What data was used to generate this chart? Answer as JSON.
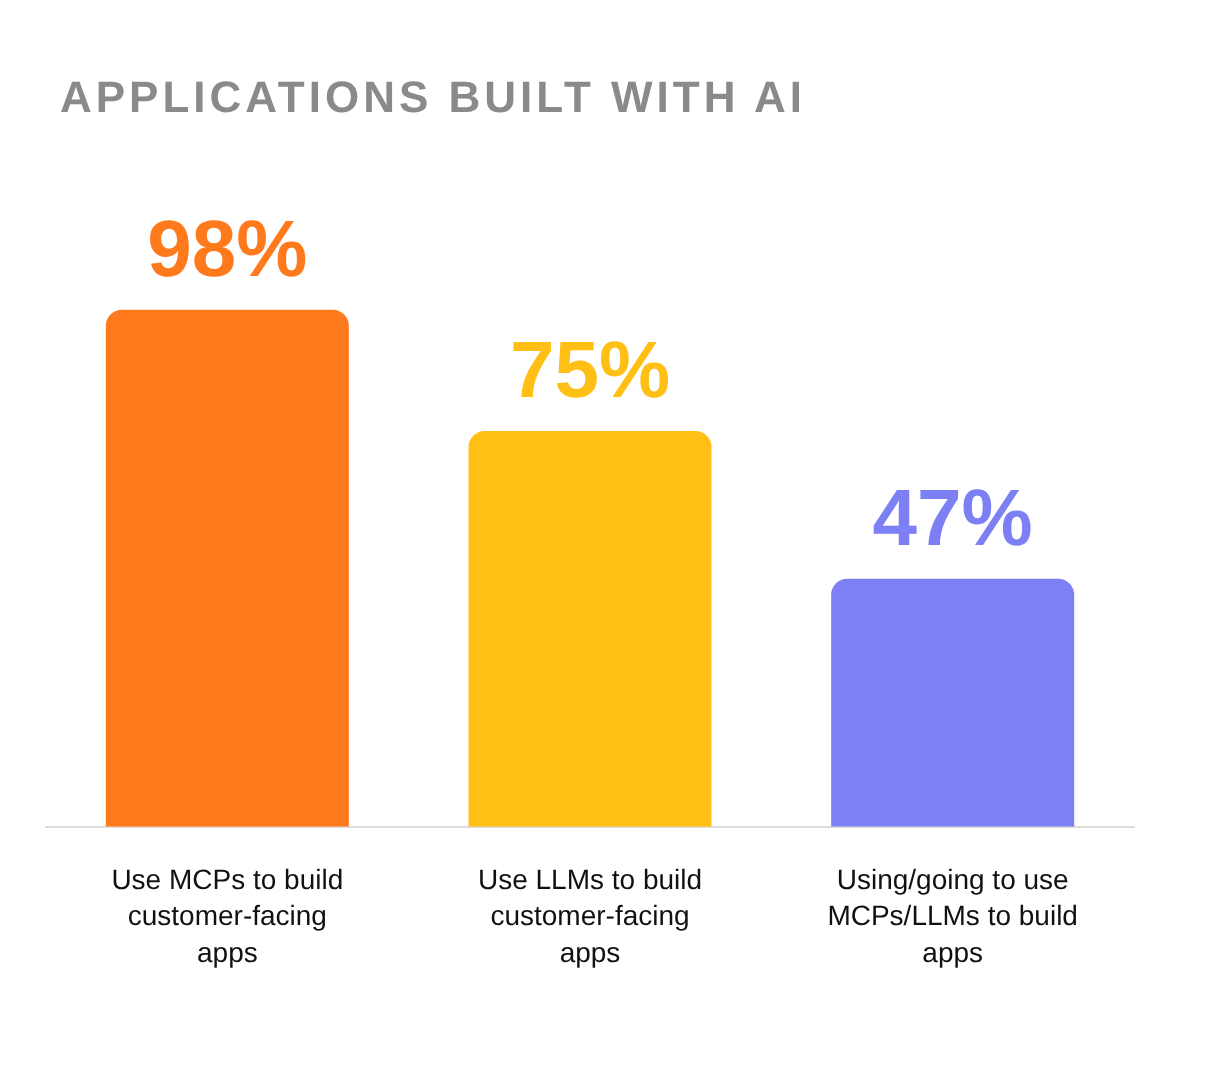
{
  "chart_data": {
    "type": "bar",
    "title": "APPLICATIONS BUILT WITH AI",
    "categories": [
      "Use MCPs to build customer-facing apps",
      "Use LLMs to build customer-facing apps",
      "Using/going to use MCPs/LLMs to build apps"
    ],
    "values": [
      98,
      75,
      47
    ],
    "colors": [
      "#ff7a1c",
      "#ffbf14",
      "#7d7ff5"
    ],
    "value_labels": [
      "98%",
      "75%",
      "47%"
    ],
    "grid": false,
    "legend": false
  }
}
